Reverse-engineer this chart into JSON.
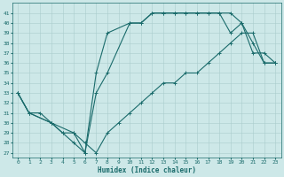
{
  "xlabel": "Humidex (Indice chaleur)",
  "bg_color": "#cde8e8",
  "line_color": "#1a6b6b",
  "grid_color": "#aacccc",
  "xlim": [
    -0.5,
    23.5
  ],
  "ylim": [
    26.5,
    42.0
  ],
  "xticks": [
    0,
    1,
    2,
    3,
    4,
    5,
    6,
    7,
    8,
    9,
    10,
    11,
    12,
    13,
    14,
    15,
    16,
    17,
    18,
    19,
    20,
    21,
    22,
    23
  ],
  "yticks": [
    27,
    28,
    29,
    30,
    31,
    32,
    33,
    34,
    35,
    36,
    37,
    38,
    39,
    40,
    41
  ],
  "line1_x": [
    0,
    1,
    3,
    4,
    5,
    6,
    7,
    8,
    10,
    11,
    12,
    13,
    14,
    15,
    16,
    17,
    18,
    19,
    20,
    21,
    22,
    23
  ],
  "line1_y": [
    33,
    31,
    30,
    29,
    28,
    27,
    35,
    39,
    40,
    40,
    41,
    41,
    41,
    41,
    41,
    41,
    41,
    41,
    40,
    38,
    36,
    36
  ],
  "line2_x": [
    0,
    1,
    3,
    5,
    6,
    7,
    8,
    10,
    11,
    12,
    13,
    14,
    15,
    16,
    17,
    18,
    19,
    20,
    21,
    22,
    23
  ],
  "line2_y": [
    33,
    31,
    30,
    29,
    27,
    33,
    35,
    40,
    40,
    41,
    41,
    41,
    41,
    41,
    41,
    41,
    39,
    40,
    37,
    37,
    36
  ],
  "line3_x": [
    0,
    1,
    2,
    3,
    4,
    5,
    6,
    7,
    8,
    9,
    10,
    11,
    12,
    13,
    14,
    15,
    16,
    17,
    18,
    19,
    20,
    21,
    22,
    23
  ],
  "line3_y": [
    33,
    31,
    31,
    30,
    29,
    29,
    28,
    27,
    29,
    30,
    31,
    32,
    33,
    34,
    34,
    35,
    35,
    36,
    37,
    38,
    39,
    39,
    36,
    36
  ],
  "lw": 0.8,
  "ms": 2.5,
  "tick_fontsize": 4.5,
  "xlabel_fontsize": 5.5
}
